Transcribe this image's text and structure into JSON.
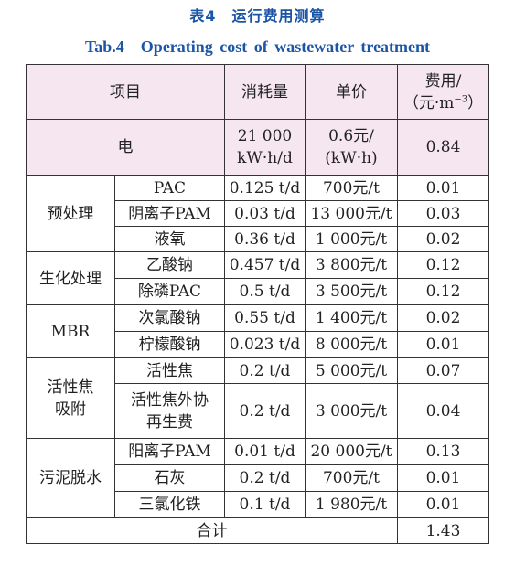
{
  "caption_cn": "表4　运行费用测算",
  "caption_en": "Tab.4　Operating cost of wastewater treatment",
  "header": {
    "item": "项目",
    "consumption": "消耗量",
    "unit_price": "单价",
    "cost_line1": "费用/",
    "cost_line2a": "（元·m",
    "cost_sup": "−3",
    "cost_line2b": "）"
  },
  "electricity": {
    "name": "电",
    "consumption_l1": "21 000",
    "consumption_l2": "kW·h/d",
    "price_l1": "0.6元/",
    "price_l2": "(kW·h)",
    "cost": "0.84"
  },
  "groups": {
    "pre": {
      "label": "预处理"
    },
    "bio": {
      "label": "生化处理"
    },
    "mbr": {
      "label": "MBR"
    },
    "coke": {
      "label_l1": "活性焦",
      "label_l2": "吸附"
    },
    "sludge": {
      "label": "污泥脱水"
    }
  },
  "rows": [
    {
      "name": "PAC",
      "consumption": "0.125 t/d",
      "price": "700元/t",
      "cost": "0.01"
    },
    {
      "name": "阴离子PAM",
      "consumption": "0.03 t/d",
      "price": "13 000元/t",
      "cost": "0.03"
    },
    {
      "name": "液氧",
      "consumption": "0.36 t/d",
      "price": "1 000元/t",
      "cost": "0.02"
    },
    {
      "name": "乙酸钠",
      "consumption": "0.457 t/d",
      "price": "3 800元/t",
      "cost": "0.12"
    },
    {
      "name": "除磷PAC",
      "consumption": "0.5 t/d",
      "price": "3 500元/t",
      "cost": "0.12"
    },
    {
      "name": "次氯酸钠",
      "consumption": "0.55 t/d",
      "price": "1 400元/t",
      "cost": "0.02"
    },
    {
      "name": "柠檬酸钠",
      "consumption": "0.023 t/d",
      "price": "8 000元/t",
      "cost": "0.01"
    },
    {
      "name": "活性焦",
      "consumption": "0.2 t/d",
      "price": "5 000元/t",
      "cost": "0.07"
    },
    {
      "name_l1": "活性焦外协",
      "name_l2": "再生费",
      "consumption": "0.2 t/d",
      "price": "3 000元/t",
      "cost": "0.04"
    },
    {
      "name": "阳离子PAM",
      "consumption": "0.01 t/d",
      "price": "20 000元/t",
      "cost": "0.13"
    },
    {
      "name": "石灰",
      "consumption": "0.2 t/d",
      "price": "700元/t",
      "cost": "0.01"
    },
    {
      "name": "三氯化铁",
      "consumption": "0.1 t/d",
      "price": "1 980元/t",
      "cost": "0.01"
    }
  ],
  "total": {
    "label": "合计",
    "cost": "1.43"
  }
}
